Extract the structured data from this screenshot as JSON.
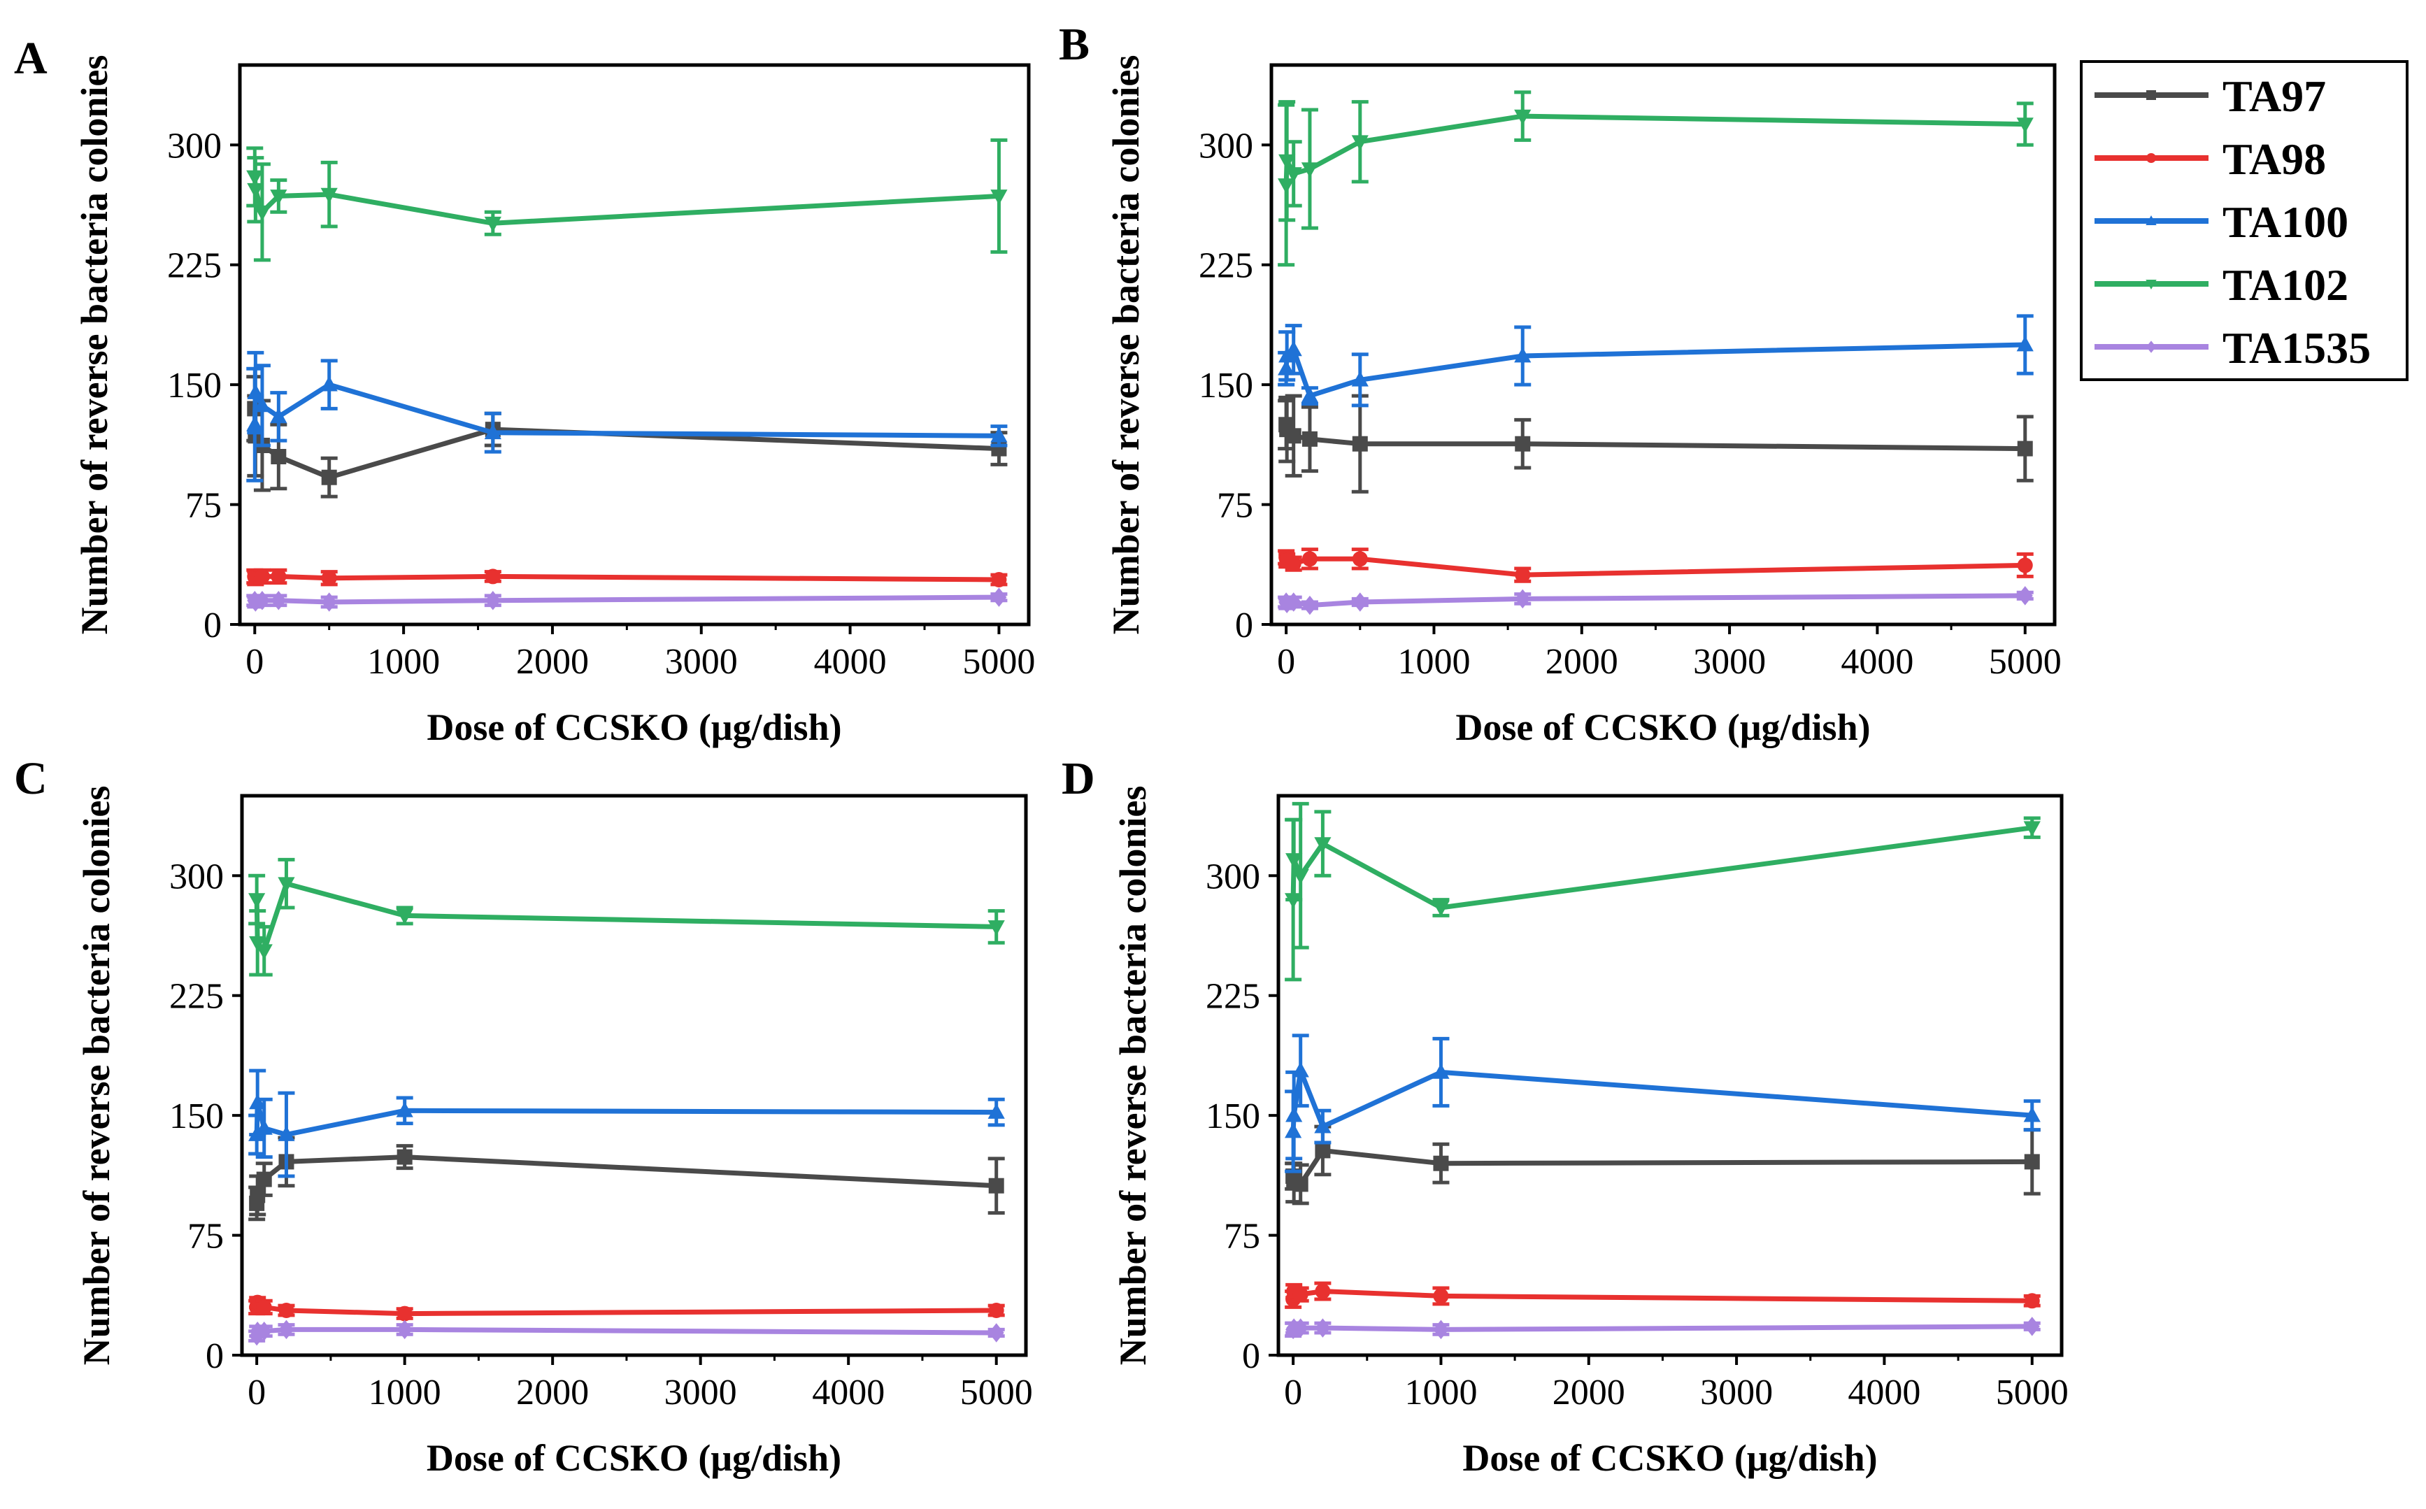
{
  "chart_data": [
    {
      "type": "line",
      "panel": "A",
      "xlabel": "Dose of CCSKO (μg/dish)",
      "ylabel": "Number of reverse bacteria colonies",
      "xlim": [
        -100,
        5200
      ],
      "ylim": [
        0,
        350
      ],
      "xticks": [
        0,
        1000,
        2000,
        3000,
        4000,
        5000
      ],
      "yticks": [
        0,
        75,
        150,
        225,
        300
      ],
      "x": [
        0,
        5,
        50,
        160,
        500,
        1600,
        5000
      ],
      "series": [
        {
          "name": "TA97",
          "values": [
            135,
            118,
            112,
            105,
            92,
            122,
            110
          ],
          "errors": [
            20,
            25,
            28,
            20,
            12,
            10,
            10
          ]
        },
        {
          "name": "TA98",
          "values": [
            30,
            29,
            30,
            30,
            29,
            30,
            28
          ],
          "errors": [
            4,
            4,
            4,
            4,
            4,
            3,
            3
          ]
        },
        {
          "name": "TA100",
          "values": [
            125,
            145,
            137,
            130,
            150,
            120,
            118
          ],
          "errors": [
            35,
            25,
            25,
            15,
            15,
            12,
            6
          ]
        },
        {
          "name": "TA102",
          "values": [
            280,
            272,
            258,
            268,
            269,
            251,
            268
          ],
          "errors": [
            18,
            20,
            30,
            10,
            20,
            7,
            35
          ]
        },
        {
          "name": "TA1535",
          "values": [
            15,
            14,
            15,
            15,
            14,
            15,
            17
          ],
          "errors": [
            3,
            3,
            3,
            3,
            3,
            3,
            2
          ]
        }
      ]
    },
    {
      "type": "line",
      "panel": "B",
      "xlabel": "Dose of CCSKO (μg/dish)",
      "ylabel": "Number of reverse bacteria colonies",
      "xlim": [
        -100,
        5200
      ],
      "ylim": [
        0,
        350
      ],
      "xticks": [
        0,
        1000,
        2000,
        3000,
        4000,
        5000
      ],
      "yticks": [
        0,
        75,
        150,
        225,
        300
      ],
      "x": [
        0,
        5,
        50,
        160,
        500,
        1600,
        5000
      ],
      "series": [
        {
          "name": "TA97",
          "values": [
            125,
            122,
            118,
            116,
            113,
            113,
            110
          ],
          "errors": [
            15,
            20,
            25,
            20,
            30,
            15,
            20
          ]
        },
        {
          "name": "TA98",
          "values": [
            42,
            40,
            38,
            41,
            41,
            31,
            37
          ],
          "errors": [
            4,
            4,
            4,
            6,
            6,
            4,
            7
          ]
        },
        {
          "name": "TA100",
          "values": [
            160,
            168,
            172,
            143,
            153,
            168,
            175
          ],
          "errors": [
            10,
            15,
            15,
            5,
            16,
            18,
            18
          ]
        },
        {
          "name": "TA102",
          "values": [
            275,
            290,
            282,
            285,
            302,
            318,
            313
          ],
          "errors": [
            50,
            37,
            20,
            37,
            25,
            15,
            13
          ]
        },
        {
          "name": "TA1535",
          "values": [
            14,
            13,
            14,
            12,
            14,
            16,
            18
          ],
          "errors": [
            3,
            3,
            3,
            2,
            2,
            3,
            2
          ]
        }
      ]
    },
    {
      "type": "line",
      "panel": "C",
      "xlabel": "Dose of CCSKO (μg/dish)",
      "ylabel": "Number of reverse bacteria colonies",
      "xlim": [
        -100,
        5200
      ],
      "ylim": [
        0,
        350
      ],
      "xticks": [
        0,
        1000,
        2000,
        3000,
        4000,
        5000
      ],
      "yticks": [
        0,
        75,
        150,
        225,
        300
      ],
      "x": [
        0,
        5,
        50,
        200,
        1000,
        5000
      ],
      "series": [
        {
          "name": "TA97",
          "values": [
            95,
            100,
            110,
            121,
            124,
            106
          ],
          "errors": [
            10,
            12,
            10,
            15,
            7,
            17
          ]
        },
        {
          "name": "TA98",
          "values": [
            30,
            33,
            30,
            28,
            26,
            28
          ],
          "errors": [
            4,
            3,
            4,
            3,
            3,
            3
          ]
        },
        {
          "name": "TA100",
          "values": [
            138,
            158,
            142,
            138,
            153,
            152
          ],
          "errors": [
            12,
            20,
            18,
            26,
            8,
            8
          ]
        },
        {
          "name": "TA102",
          "values": [
            285,
            258,
            253,
            295,
            275,
            268
          ],
          "errors": [
            15,
            20,
            15,
            15,
            5,
            10
          ]
        },
        {
          "name": "TA1535",
          "values": [
            12,
            15,
            15,
            16,
            16,
            14
          ],
          "errors": [
            3,
            3,
            3,
            3,
            3,
            2
          ]
        }
      ]
    },
    {
      "type": "line",
      "panel": "D",
      "xlabel": "Dose of CCSKO (μg/dish)",
      "ylabel": "Number of reverse bacteria colonies",
      "xlim": [
        -100,
        5200
      ],
      "ylim": [
        0,
        350
      ],
      "xticks": [
        0,
        1000,
        2000,
        3000,
        4000,
        5000
      ],
      "yticks": [
        0,
        75,
        150,
        225,
        300
      ],
      "x": [
        0,
        5,
        50,
        200,
        1000,
        5000
      ],
      "series": [
        {
          "name": "TA97",
          "values": [
            112,
            108,
            107,
            128,
            120,
            121
          ],
          "errors": [
            8,
            12,
            12,
            15,
            12,
            20
          ]
        },
        {
          "name": "TA98",
          "values": [
            35,
            40,
            38,
            40,
            37,
            34
          ],
          "errors": [
            5,
            4,
            4,
            5,
            5,
            3
          ]
        },
        {
          "name": "TA100",
          "values": [
            140,
            150,
            178,
            143,
            177,
            150
          ],
          "errors": [
            25,
            27,
            22,
            10,
            21,
            9
          ]
        },
        {
          "name": "TA102",
          "values": [
            285,
            310,
            300,
            320,
            280,
            330
          ],
          "errors": [
            50,
            25,
            45,
            20,
            5,
            6
          ]
        },
        {
          "name": "TA1535",
          "values": [
            16,
            17,
            17,
            17,
            16,
            18
          ],
          "errors": [
            4,
            3,
            3,
            3,
            3,
            2
          ]
        }
      ]
    }
  ],
  "legend": {
    "entries": [
      {
        "name": "TA97",
        "color": "#4a4a4a",
        "marker": "square"
      },
      {
        "name": "TA98",
        "color": "#e8312f",
        "marker": "circle"
      },
      {
        "name": "TA100",
        "color": "#1f72d6",
        "marker": "triangle-up"
      },
      {
        "name": "TA102",
        "color": "#2fae62",
        "marker": "triangle-down"
      },
      {
        "name": "TA1535",
        "color": "#a884e0",
        "marker": "diamond"
      }
    ]
  },
  "colors": {
    "TA97": "#4a4a4a",
    "TA98": "#e8312f",
    "TA100": "#1f72d6",
    "TA102": "#2fae62",
    "TA1535": "#a884e0"
  }
}
